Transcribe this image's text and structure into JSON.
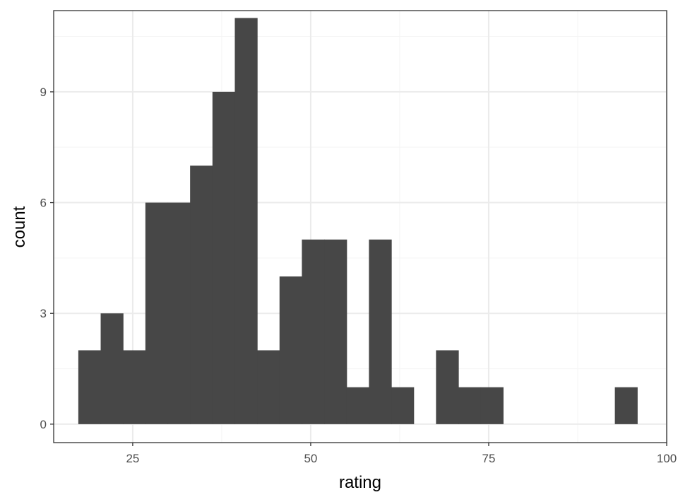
{
  "chart_data": {
    "type": "bar",
    "subtype": "histogram",
    "title": "",
    "xlabel": "rating",
    "ylabel": "count",
    "bin_width": 3.14,
    "bins": [
      {
        "x_start": 17.36,
        "x_end": 20.5,
        "count": 2
      },
      {
        "x_start": 20.5,
        "x_end": 23.64,
        "count": 3
      },
      {
        "x_start": 23.64,
        "x_end": 26.78,
        "count": 2
      },
      {
        "x_start": 26.78,
        "x_end": 29.92,
        "count": 6
      },
      {
        "x_start": 29.92,
        "x_end": 33.06,
        "count": 6
      },
      {
        "x_start": 33.06,
        "x_end": 36.2,
        "count": 7
      },
      {
        "x_start": 36.2,
        "x_end": 39.34,
        "count": 9
      },
      {
        "x_start": 39.34,
        "x_end": 42.48,
        "count": 11
      },
      {
        "x_start": 42.48,
        "x_end": 45.62,
        "count": 2
      },
      {
        "x_start": 45.62,
        "x_end": 48.76,
        "count": 4
      },
      {
        "x_start": 48.76,
        "x_end": 51.9,
        "count": 5
      },
      {
        "x_start": 51.9,
        "x_end": 55.04,
        "count": 5
      },
      {
        "x_start": 55.04,
        "x_end": 58.18,
        "count": 1
      },
      {
        "x_start": 58.18,
        "x_end": 61.32,
        "count": 5
      },
      {
        "x_start": 61.32,
        "x_end": 64.46,
        "count": 1
      },
      {
        "x_start": 64.46,
        "x_end": 67.6,
        "count": 0
      },
      {
        "x_start": 67.6,
        "x_end": 70.74,
        "count": 2
      },
      {
        "x_start": 70.74,
        "x_end": 73.88,
        "count": 1
      },
      {
        "x_start": 73.88,
        "x_end": 77.02,
        "count": 1
      },
      {
        "x_start": 77.02,
        "x_end": 80.16,
        "count": 0
      },
      {
        "x_start": 80.16,
        "x_end": 83.3,
        "count": 0
      },
      {
        "x_start": 83.3,
        "x_end": 86.44,
        "count": 0
      },
      {
        "x_start": 86.44,
        "x_end": 89.58,
        "count": 0
      },
      {
        "x_start": 89.58,
        "x_end": 92.72,
        "count": 0
      },
      {
        "x_start": 92.72,
        "x_end": 95.86,
        "count": 1
      }
    ],
    "xlim": [
      13.9,
      100
    ],
    "ylim": [
      -0.5,
      11.2
    ],
    "xticks": [
      25,
      50,
      75,
      100
    ],
    "xtick_labels": [
      "25",
      "50",
      "75",
      "100"
    ],
    "yticks": [
      0,
      3,
      6,
      9
    ],
    "ytick_labels": [
      "0",
      "3",
      "6",
      "9"
    ],
    "x_minor": [
      12.5,
      37.5,
      62.5,
      87.5
    ],
    "y_minor": [
      1.5,
      4.5,
      7.5,
      10.5
    ],
    "grid": true,
    "theme": "bw",
    "colors": {
      "bar_fill": "#474747",
      "grid_major": "#ebebeb",
      "grid_minor": "#f5f5f5",
      "panel_border": "#333333",
      "tick_label": "#4d4d4d",
      "axis_title": "#000000"
    }
  }
}
